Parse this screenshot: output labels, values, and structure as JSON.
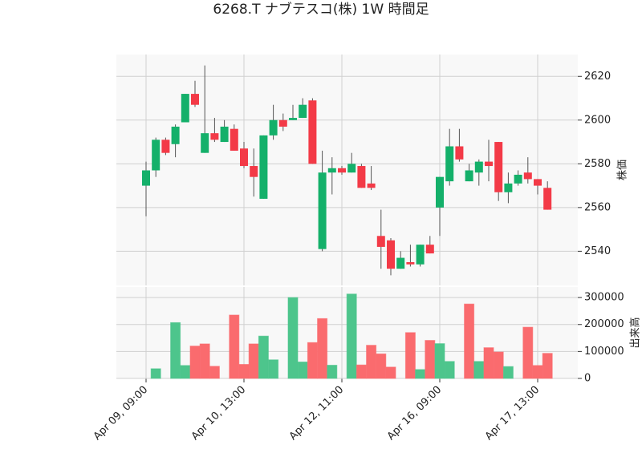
{
  "chart_data": {
    "type": "candlestick",
    "title": "6268.T ナブテスコ(株) 1W 時間足",
    "categories": [
      "Apr 09, 09:00",
      null,
      null,
      null,
      null,
      null,
      null,
      null,
      null,
      null,
      "Apr 10, 13:00",
      null,
      null,
      null,
      null,
      null,
      null,
      null,
      null,
      null,
      "Apr 12, 11:00",
      null,
      null,
      null,
      null,
      null,
      null,
      null,
      null,
      null,
      "Apr 16, 09:00",
      null,
      null,
      null,
      null,
      null,
      null,
      null,
      null,
      null,
      "Apr 17, 13:00",
      null
    ],
    "open": [
      2570,
      2577,
      2591,
      2589,
      2599,
      2612,
      2585,
      2594,
      2590,
      2596,
      2587,
      2579,
      2564,
      2593,
      2600,
      2600,
      2601,
      2609,
      2541,
      2576,
      2578,
      2576,
      2579,
      2571,
      2547,
      2545,
      2532,
      2535,
      2534,
      2543,
      2560,
      2572,
      2588,
      2572,
      2576,
      2581,
      2590,
      2567,
      2571,
      2576,
      2573,
      2569
    ],
    "high": [
      2581,
      2592,
      2592,
      2598,
      2612,
      2618,
      2625,
      2601,
      2600,
      2598,
      2590,
      2587,
      2593,
      2607,
      2603,
      2607,
      2610,
      2610,
      2586,
      2583,
      2579,
      2585,
      2580,
      2579,
      2559,
      2546,
      2540,
      2543,
      2543,
      2547,
      2574,
      2596,
      2596,
      2580,
      2582,
      2591,
      2590,
      2576,
      2577,
      2583,
      2573,
      2572
    ],
    "low": [
      2556,
      2574,
      2584,
      2583,
      2599,
      2606,
      2585,
      2590,
      2590,
      2586,
      2578,
      2565,
      2564,
      2591,
      2595,
      2600,
      2601,
      2580,
      2540,
      2566,
      2575,
      2576,
      2569,
      2568,
      2532,
      2529,
      2532,
      2533,
      2533,
      2539,
      2547,
      2570,
      2581,
      2572,
      2570,
      2572,
      2563,
      2562,
      2570,
      2571,
      2566,
      2559
    ],
    "close": [
      2577,
      2591,
      2585,
      2597,
      2612,
      2607,
      2594,
      2591,
      2597,
      2586,
      2579,
      2574,
      2593,
      2600,
      2597,
      2601,
      2607,
      2580,
      2576,
      2578,
      2576,
      2580,
      2569,
      2569,
      2542,
      2532,
      2537,
      2534,
      2543,
      2539,
      2574,
      2588,
      2582,
      2577,
      2581,
      2579,
      2567,
      2571,
      2575,
      2573,
      2570,
      2559
    ],
    "up_color": "#14b06a",
    "down_color": "#f33a47",
    "ylabel": "株価",
    "ylim": [
      2524,
      2630
    ],
    "yticks": [
      2540,
      2560,
      2580,
      2600,
      2620
    ],
    "grid": true,
    "volume": {
      "type": "bar",
      "ylabel": "出来高",
      "values": [
        0,
        36000,
        0,
        207000,
        48000,
        120000,
        128000,
        45000,
        0,
        235000,
        52000,
        128000,
        157000,
        69000,
        0,
        300000,
        61000,
        133000,
        222000,
        49000,
        0,
        313000,
        50000,
        123000,
        91000,
        42000,
        0,
        170000,
        33000,
        141000,
        129000,
        63000,
        0,
        276000,
        63000,
        114000,
        98000,
        44000,
        0,
        190000,
        48000,
        93000
      ],
      "colors": [
        "#4dc58c",
        "#4dc58c",
        "#4dc58c",
        "#4dc58c",
        "#4dc58c",
        "#fa6b6e",
        "#fa6b6e",
        "#fa6b6e",
        "#fa6b6e",
        "#fa6b6e",
        "#fa6b6e",
        "#fa6b6e",
        "#4dc58c",
        "#4dc58c",
        "#4dc58c",
        "#4dc58c",
        "#4dc58c",
        "#fa6b6e",
        "#fa6b6e",
        "#4dc58c",
        "#4dc58c",
        "#4dc58c",
        "#fa6b6e",
        "#fa6b6e",
        "#fa6b6e",
        "#fa6b6e",
        "#fa6b6e",
        "#fa6b6e",
        "#4dc58c",
        "#fa6b6e",
        "#4dc58c",
        "#4dc58c",
        "#4dc58c",
        "#fa6b6e",
        "#4dc58c",
        "#fa6b6e",
        "#fa6b6e",
        "#4dc58c",
        "#4dc58c",
        "#fa6b6e",
        "#fa6b6e",
        "#fa6b6e"
      ],
      "ylim": [
        0,
        342000
      ],
      "yticks": [
        0,
        100000,
        200000,
        300000
      ]
    }
  }
}
